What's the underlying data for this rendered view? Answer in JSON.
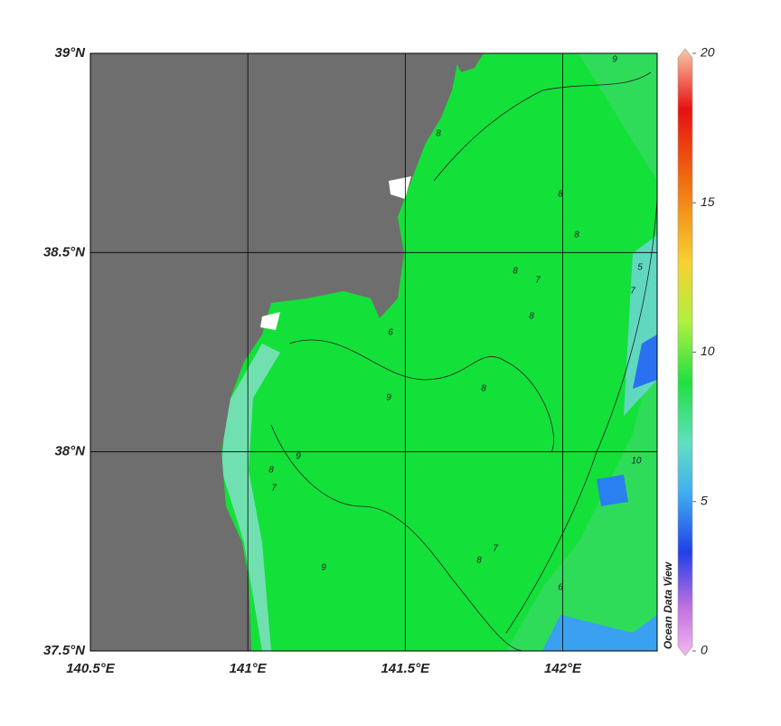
{
  "map": {
    "xlim": [
      140.5,
      142.3
    ],
    "ylim": [
      37.5,
      39
    ],
    "xticks": [
      {
        "value": 140.5,
        "label": "140.5°E"
      },
      {
        "value": 141,
        "label": "141°E"
      },
      {
        "value": 141.5,
        "label": "141.5°E"
      },
      {
        "value": 142,
        "label": "142°E"
      }
    ],
    "yticks": [
      {
        "value": 37.5,
        "label": "37.5°N"
      },
      {
        "value": 38,
        "label": "38°N"
      },
      {
        "value": 38.5,
        "label": "38.5°N"
      },
      {
        "value": 39,
        "label": "39°N"
      }
    ],
    "grid": true,
    "colorbar": {
      "lim": [
        0,
        20
      ],
      "ticks": [
        0,
        5,
        10,
        15,
        20
      ]
    },
    "credit": "Ocean Data View",
    "contour_labels": [
      9,
      8,
      8,
      8,
      7,
      8,
      9,
      8,
      8,
      9,
      8,
      7,
      9,
      7,
      6,
      10,
      5,
      8,
      7,
      6
    ]
  }
}
